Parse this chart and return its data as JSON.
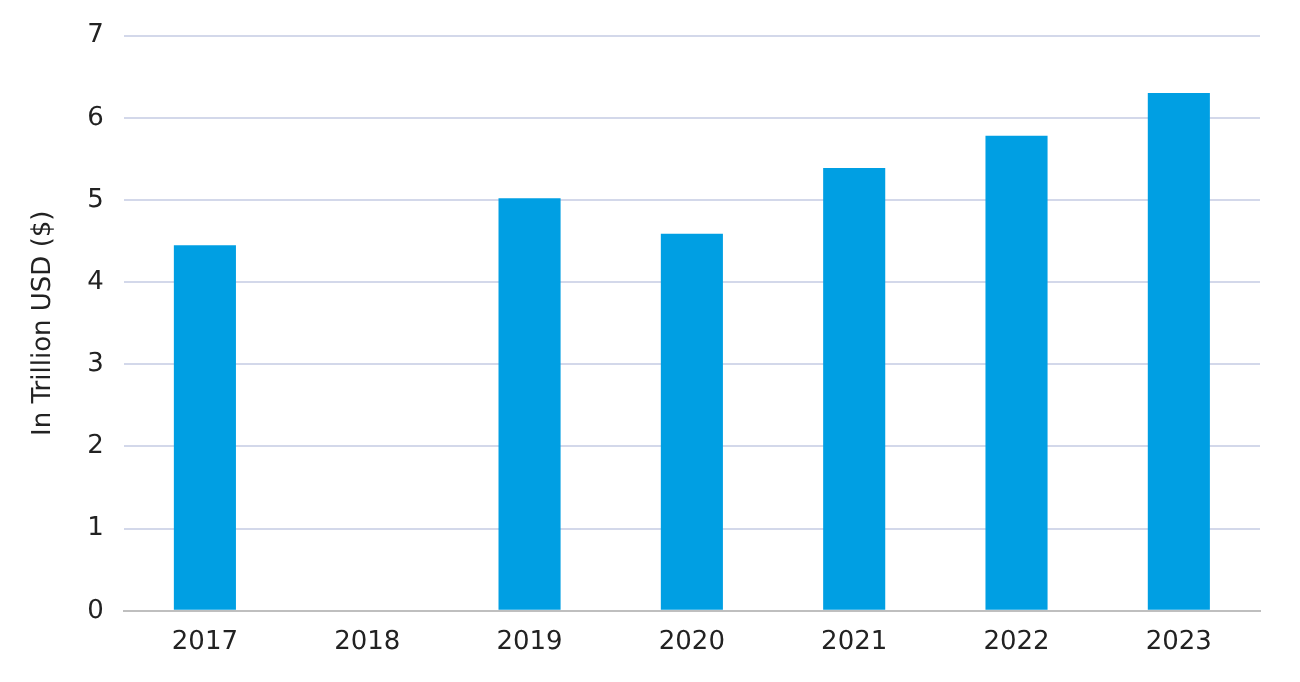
{
  "chart_data": {
    "type": "bar",
    "ylabel": "In Trillion USD ($)",
    "categories": [
      "2017",
      "2018",
      "2019",
      "2020",
      "2021",
      "2022",
      "2023"
    ],
    "values": [
      4.45,
      null,
      5.02,
      4.59,
      5.39,
      5.78,
      6.3
    ],
    "color": "#009fe3",
    "ylim": [
      0,
      7
    ],
    "yticks": [
      0,
      1,
      2,
      3,
      4,
      5,
      6,
      7
    ],
    "grid": "y"
  }
}
